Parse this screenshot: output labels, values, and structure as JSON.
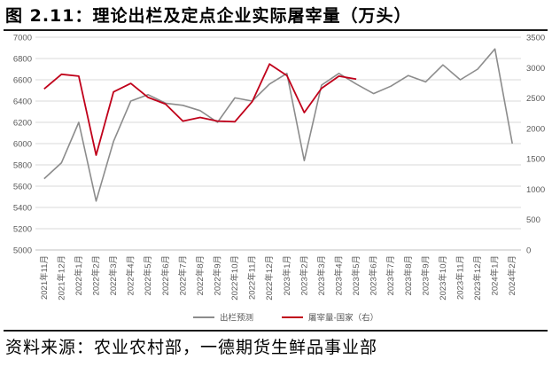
{
  "title": "图 2.11：理论出栏及定点企业实际屠宰量（万头）",
  "source": "资料来源：农业农村部，一德期货生鲜品事业部",
  "chart_data": {
    "type": "line",
    "categories": [
      "2021年11月",
      "2021年12月",
      "2022年1月",
      "2022年2月",
      "2022年3月",
      "2022年4月",
      "2022年5月",
      "2022年6月",
      "2022年7月",
      "2022年8月",
      "2022年9月",
      "2022年10月",
      "2022年11月",
      "2022年12月",
      "2023年1月",
      "2023年2月",
      "2023年3月",
      "2023年4月",
      "2023年5月",
      "2023年6月",
      "2023年7月",
      "2023年8月",
      "2023年9月",
      "2023年10月",
      "2023年11月",
      "2023年12月",
      "2024年1月",
      "2024年2月"
    ],
    "y_left": {
      "min": 5000,
      "max": 7000,
      "step": 200,
      "ticks": [
        "5000",
        "5200",
        "5400",
        "5600",
        "5800",
        "6000",
        "6200",
        "6400",
        "6600",
        "6800",
        "7000"
      ]
    },
    "y_right": {
      "min": 0,
      "max": 3500,
      "step": 500,
      "ticks": [
        "0",
        "500",
        "1000",
        "1500",
        "2000",
        "2500",
        "3000",
        "3500"
      ]
    },
    "series": [
      {
        "name": "出栏预测",
        "axis": "left",
        "color": "#8c8c8c",
        "values": [
          5670,
          5820,
          6200,
          5460,
          6020,
          6400,
          6460,
          6380,
          6360,
          6310,
          6200,
          6430,
          6400,
          6560,
          6660,
          5840,
          6550,
          6660,
          6560,
          6470,
          6540,
          6640,
          6580,
          6740,
          6600,
          6700,
          6890,
          6000
        ]
      },
      {
        "name": "屠宰量-国家（右）",
        "axis": "right",
        "color": "#c0001a",
        "values": [
          2650,
          2890,
          2860,
          1560,
          2600,
          2740,
          2510,
          2400,
          2120,
          2180,
          2120,
          2110,
          2440,
          3060,
          2870,
          2260,
          2660,
          2860,
          2810,
          null,
          null,
          null,
          null,
          null,
          null,
          null,
          null,
          null
        ]
      }
    ],
    "legend_position": "bottom",
    "grid": true
  }
}
